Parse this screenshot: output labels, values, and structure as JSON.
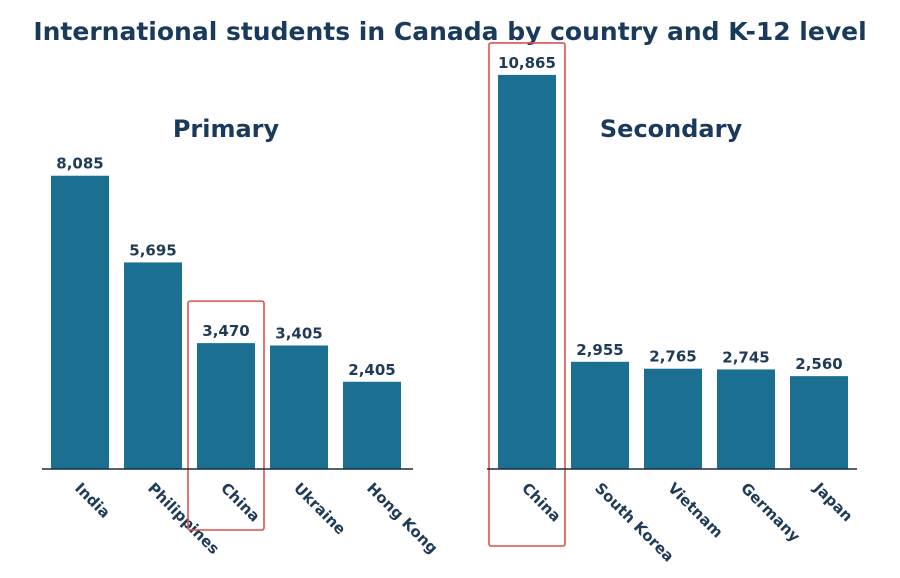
{
  "title": "International students in Canada by country and K-12 level",
  "chart_data": [
    {
      "type": "bar",
      "title": "Primary",
      "categories": [
        "India",
        "Philippines",
        "China",
        "Ukraine",
        "Hong Kong"
      ],
      "values": [
        8085,
        5695,
        3470,
        3405,
        2405
      ],
      "value_labels": [
        "8,085",
        "5,695",
        "3,470",
        "3,405",
        "2,405"
      ],
      "ylim": [
        0,
        11000
      ],
      "highlighted_category": "China",
      "bar_color": "#1b6f91",
      "highlight_color": "#d9534f",
      "grid": false
    },
    {
      "type": "bar",
      "title": "Secondary",
      "categories": [
        "China",
        "South Korea",
        "Vietnam",
        "Germany",
        "Japan"
      ],
      "values": [
        10865,
        2955,
        2765,
        2745,
        2560
      ],
      "value_labels": [
        "10,865",
        "2,955",
        "2,765",
        "2,745",
        "2,560"
      ],
      "ylim": [
        0,
        11000
      ],
      "highlighted_category": "China",
      "bar_color": "#1b6f91",
      "highlight_color": "#d9534f",
      "grid": false
    }
  ]
}
